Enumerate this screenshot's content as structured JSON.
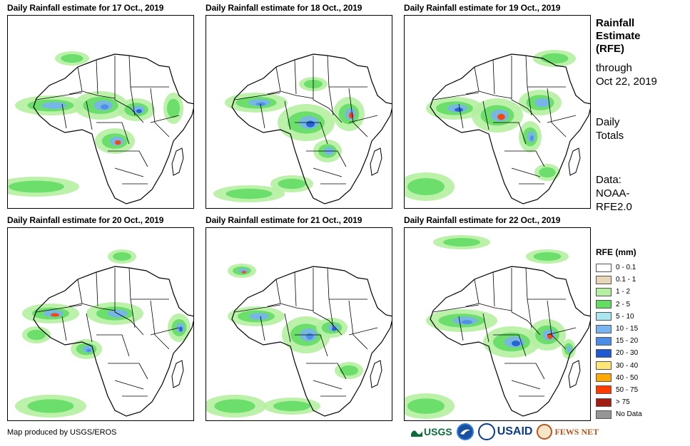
{
  "panels": [
    {
      "title": "Daily Rainfall estimate for 17 Oct., 2019"
    },
    {
      "title": "Daily Rainfall estimate for 18 Oct., 2019"
    },
    {
      "title": "Daily Rainfall estimate for 19 Oct., 2019"
    },
    {
      "title": "Daily Rainfall estimate for 20 Oct., 2019"
    },
    {
      "title": "Daily Rainfall estimate for 21 Oct., 2019"
    },
    {
      "title": "Daily Rainfall estimate for 22 Oct., 2019"
    }
  ],
  "sidebar": {
    "title_line1": "Rainfall",
    "title_line2": "Estimate",
    "title_line3": "(RFE)",
    "through_label": "through",
    "through_date": "Oct 22, 2019",
    "totals_line1": "Daily",
    "totals_line2": "Totals",
    "data_line1": "Data:",
    "data_line2": "NOAA-",
    "data_line3": "RFE2.0"
  },
  "legend": {
    "title": "RFE (mm)",
    "items": [
      {
        "label": "0 - 0.1",
        "color": "#ffffff"
      },
      {
        "label": "0.1 - 1",
        "color": "#e6d7b9"
      },
      {
        "label": "1 - 2",
        "color": "#b4f0a0"
      },
      {
        "label": "2 - 5",
        "color": "#64dc64"
      },
      {
        "label": "5 - 10",
        "color": "#a8e6f0"
      },
      {
        "label": "10 - 15",
        "color": "#78b4f0"
      },
      {
        "label": "15 - 20",
        "color": "#4b8ce6"
      },
      {
        "label": "20 - 30",
        "color": "#1e5ad2"
      },
      {
        "label": "30 - 40",
        "color": "#ffe678"
      },
      {
        "label": "40 - 50",
        "color": "#ffaa00"
      },
      {
        "label": "50 - 75",
        "color": "#ff3c00"
      },
      {
        "label": "> 75",
        "color": "#a01e14"
      },
      {
        "label": "No Data",
        "color": "#969696"
      }
    ]
  },
  "footer": {
    "credit": "Map produced by USGS/EROS",
    "logo_usgs": "USGS",
    "logo_usaid": "USAID",
    "logo_fews": "FEWS NET"
  }
}
